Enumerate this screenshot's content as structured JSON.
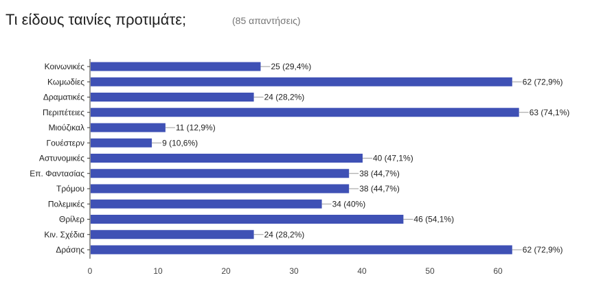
{
  "header": {
    "title": "Τι είδους ταινίες προτιμάτε;",
    "responses": "(85 απαντήσεις)"
  },
  "colors": {
    "bar": "#3f51b5",
    "axis": "#333333",
    "leader": "#999999"
  },
  "chart_data": {
    "type": "bar",
    "orientation": "horizontal",
    "categories": [
      "Κοινωνικές",
      "Κωμωδίες",
      "Δραματικές",
      "Περιπέτειες",
      "Μιούζικαλ",
      "Γουέστερν",
      "Αστυνομικές",
      "Επ. Φαντασίας",
      "Τρόμου",
      "Πολεμικές",
      "Θρίλερ",
      "Κιν. Σχέδια",
      "Δράσης"
    ],
    "values": [
      25,
      62,
      24,
      63,
      11,
      9,
      40,
      38,
      38,
      34,
      46,
      24,
      62
    ],
    "data_labels": [
      "25 (29,4%)",
      "62 (72,9%)",
      "24 (28,2%)",
      "63 (74,1%)",
      "11 (12,9%)",
      "9 (10,6%)",
      "40 (47,1%)",
      "38 (44,7%)",
      "38 (44,7%)",
      "34 (40%)",
      "46 (54,1%)",
      "24 (28,2%)",
      "62 (72,9%)"
    ],
    "x_ticks": [
      "0",
      "10",
      "20",
      "30",
      "40",
      "50",
      "60"
    ],
    "xlim": [
      0,
      63
    ],
    "grid": false
  }
}
